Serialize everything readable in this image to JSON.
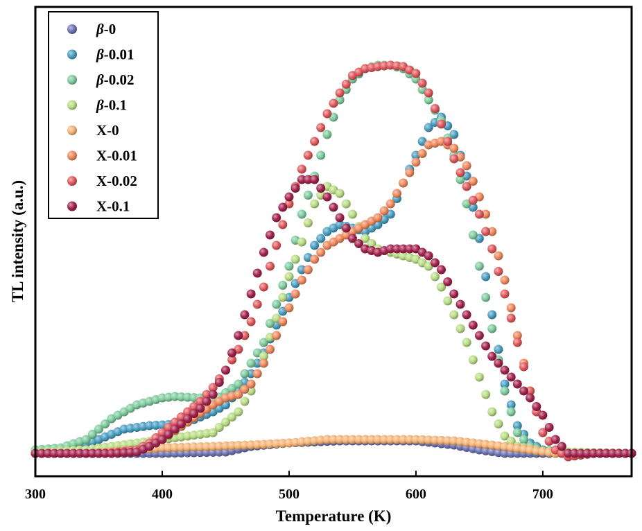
{
  "chart_data": {
    "type": "scatter",
    "xlabel": "Temperature (K)",
    "ylabel": "TL intensity (a.u.)",
    "xlim": [
      300,
      770
    ],
    "ylim": [
      -30,
      650
    ],
    "xticks": [
      "300",
      "400",
      "500",
      "600",
      "700"
    ],
    "grid": false,
    "legend_position": "top-left",
    "series": [
      {
        "name_prefix": "β",
        "name_suffix": "-0",
        "color": "#6f74b3",
        "points": [
          [
            300,
            0
          ],
          [
            340,
            0
          ],
          [
            380,
            0
          ],
          [
            400,
            0
          ],
          [
            450,
            2
          ],
          [
            470,
            10
          ],
          [
            500,
            15
          ],
          [
            540,
            18
          ],
          [
            560,
            18
          ],
          [
            600,
            18
          ],
          [
            630,
            12
          ],
          [
            650,
            5
          ],
          [
            670,
            0
          ],
          [
            700,
            0
          ],
          [
            720,
            0
          ],
          [
            770,
            0
          ]
        ]
      },
      {
        "name_prefix": "β",
        "name_suffix": "-0.01",
        "color": "#4a9ec2",
        "points": [
          [
            300,
            5
          ],
          [
            330,
            8
          ],
          [
            350,
            20
          ],
          [
            370,
            35
          ],
          [
            390,
            40
          ],
          [
            410,
            42
          ],
          [
            420,
            45
          ],
          [
            440,
            60
          ],
          [
            450,
            70
          ],
          [
            460,
            90
          ],
          [
            470,
            115
          ],
          [
            480,
            145
          ],
          [
            490,
            185
          ],
          [
            500,
            225
          ],
          [
            510,
            265
          ],
          [
            520,
            300
          ],
          [
            530,
            320
          ],
          [
            540,
            330
          ],
          [
            550,
            325
          ],
          [
            560,
            320
          ],
          [
            570,
            330
          ],
          [
            580,
            345
          ],
          [
            590,
            390
          ],
          [
            600,
            430
          ],
          [
            610,
            470
          ],
          [
            620,
            485
          ],
          [
            630,
            460
          ],
          [
            640,
            400
          ],
          [
            650,
            310
          ],
          [
            660,
            200
          ],
          [
            670,
            100
          ],
          [
            680,
            40
          ],
          [
            690,
            15
          ],
          [
            700,
            5
          ],
          [
            720,
            0
          ],
          [
            770,
            0
          ]
        ]
      },
      {
        "name_prefix": "β",
        "name_suffix": "-0.02",
        "color": "#7fcc9e",
        "points": [
          [
            300,
            5
          ],
          [
            320,
            8
          ],
          [
            340,
            20
          ],
          [
            360,
            50
          ],
          [
            380,
            70
          ],
          [
            400,
            80
          ],
          [
            410,
            82
          ],
          [
            430,
            80
          ],
          [
            440,
            75
          ],
          [
            460,
            100
          ],
          [
            480,
            160
          ],
          [
            500,
            270
          ],
          [
            510,
            345
          ],
          [
            520,
            400
          ],
          [
            530,
            460
          ],
          [
            540,
            510
          ],
          [
            550,
            540
          ],
          [
            560,
            555
          ],
          [
            570,
            560
          ],
          [
            580,
            560
          ],
          [
            590,
            555
          ],
          [
            600,
            540
          ],
          [
            610,
            510
          ],
          [
            620,
            480
          ],
          [
            630,
            430
          ],
          [
            640,
            360
          ],
          [
            650,
            270
          ],
          [
            660,
            180
          ],
          [
            670,
            90
          ],
          [
            680,
            30
          ],
          [
            690,
            10
          ],
          [
            700,
            3
          ],
          [
            720,
            0
          ],
          [
            770,
            0
          ]
        ]
      },
      {
        "name_prefix": "β",
        "name_suffix": "-0.1",
        "color": "#b9dd86",
        "points": [
          [
            300,
            2
          ],
          [
            340,
            5
          ],
          [
            360,
            10
          ],
          [
            380,
            15
          ],
          [
            400,
            20
          ],
          [
            420,
            25
          ],
          [
            440,
            30
          ],
          [
            460,
            60
          ],
          [
            470,
            90
          ],
          [
            480,
            140
          ],
          [
            490,
            195
          ],
          [
            500,
            255
          ],
          [
            510,
            305
          ],
          [
            520,
            360
          ],
          [
            530,
            385
          ],
          [
            540,
            375
          ],
          [
            550,
            345
          ],
          [
            560,
            310
          ],
          [
            570,
            295
          ],
          [
            580,
            290
          ],
          [
            590,
            285
          ],
          [
            600,
            280
          ],
          [
            610,
            270
          ],
          [
            620,
            240
          ],
          [
            630,
            200
          ],
          [
            640,
            160
          ],
          [
            650,
            110
          ],
          [
            660,
            60
          ],
          [
            670,
            25
          ],
          [
            680,
            10
          ],
          [
            700,
            3
          ],
          [
            770,
            0
          ]
        ]
      },
      {
        "name_prefix": "",
        "name_suffix": "X-0",
        "color": "#f5b476",
        "points": [
          [
            300,
            0
          ],
          [
            340,
            0
          ],
          [
            380,
            5
          ],
          [
            400,
            8
          ],
          [
            440,
            10
          ],
          [
            480,
            13
          ],
          [
            500,
            15
          ],
          [
            530,
            20
          ],
          [
            560,
            20
          ],
          [
            600,
            20
          ],
          [
            630,
            18
          ],
          [
            660,
            12
          ],
          [
            690,
            5
          ],
          [
            710,
            0
          ],
          [
            740,
            0
          ],
          [
            770,
            0
          ]
        ]
      },
      {
        "name_prefix": "",
        "name_suffix": "X-0.01",
        "color": "#f08a5d",
        "points": [
          [
            300,
            0
          ],
          [
            350,
            0
          ],
          [
            380,
            5
          ],
          [
            400,
            20
          ],
          [
            420,
            45
          ],
          [
            440,
            70
          ],
          [
            450,
            80
          ],
          [
            460,
            85
          ],
          [
            470,
            100
          ],
          [
            480,
            130
          ],
          [
            490,
            170
          ],
          [
            500,
            210
          ],
          [
            510,
            250
          ],
          [
            520,
            280
          ],
          [
            530,
            300
          ],
          [
            540,
            310
          ],
          [
            550,
            320
          ],
          [
            560,
            330
          ],
          [
            570,
            340
          ],
          [
            580,
            360
          ],
          [
            590,
            390
          ],
          [
            600,
            420
          ],
          [
            610,
            445
          ],
          [
            620,
            450
          ],
          [
            630,
            440
          ],
          [
            640,
            415
          ],
          [
            650,
            370
          ],
          [
            660,
            320
          ],
          [
            670,
            250
          ],
          [
            680,
            170
          ],
          [
            690,
            90
          ],
          [
            700,
            30
          ],
          [
            710,
            5
          ],
          [
            720,
            0
          ],
          [
            770,
            0
          ]
        ]
      },
      {
        "name_prefix": "",
        "name_suffix": "X-0.02",
        "color": "#e05a5e",
        "points": [
          [
            300,
            0
          ],
          [
            360,
            0
          ],
          [
            380,
            5
          ],
          [
            390,
            15
          ],
          [
            400,
            30
          ],
          [
            410,
            45
          ],
          [
            420,
            60
          ],
          [
            430,
            75
          ],
          [
            440,
            95
          ],
          [
            450,
            120
          ],
          [
            460,
            150
          ],
          [
            470,
            190
          ],
          [
            480,
            240
          ],
          [
            490,
            300
          ],
          [
            500,
            360
          ],
          [
            510,
            410
          ],
          [
            520,
            450
          ],
          [
            530,
            490
          ],
          [
            540,
            520
          ],
          [
            550,
            545
          ],
          [
            560,
            555
          ],
          [
            570,
            558
          ],
          [
            580,
            560
          ],
          [
            590,
            558
          ],
          [
            600,
            548
          ],
          [
            610,
            520
          ],
          [
            620,
            475
          ],
          [
            630,
            425
          ],
          [
            640,
            385
          ],
          [
            650,
            345
          ],
          [
            660,
            295
          ],
          [
            670,
            230
          ],
          [
            680,
            160
          ],
          [
            690,
            90
          ],
          [
            700,
            30
          ],
          [
            710,
            5
          ],
          [
            720,
            -5
          ],
          [
            740,
            0
          ],
          [
            770,
            0
          ]
        ]
      },
      {
        "name_prefix": "",
        "name_suffix": "X-0.1",
        "color": "#a3234e",
        "points": [
          [
            300,
            0
          ],
          [
            360,
            0
          ],
          [
            380,
            2
          ],
          [
            390,
            10
          ],
          [
            400,
            20
          ],
          [
            410,
            35
          ],
          [
            420,
            50
          ],
          [
            430,
            65
          ],
          [
            440,
            85
          ],
          [
            450,
            120
          ],
          [
            460,
            170
          ],
          [
            470,
            230
          ],
          [
            480,
            290
          ],
          [
            490,
            340
          ],
          [
            500,
            370
          ],
          [
            510,
            395
          ],
          [
            520,
            395
          ],
          [
            530,
            370
          ],
          [
            540,
            340
          ],
          [
            550,
            310
          ],
          [
            560,
            295
          ],
          [
            570,
            290
          ],
          [
            580,
            295
          ],
          [
            590,
            295
          ],
          [
            600,
            295
          ],
          [
            610,
            285
          ],
          [
            620,
            265
          ],
          [
            630,
            230
          ],
          [
            640,
            200
          ],
          [
            650,
            170
          ],
          [
            660,
            140
          ],
          [
            670,
            120
          ],
          [
            680,
            100
          ],
          [
            690,
            80
          ],
          [
            700,
            55
          ],
          [
            710,
            20
          ],
          [
            720,
            0
          ],
          [
            740,
            0
          ],
          [
            770,
            0
          ]
        ]
      }
    ]
  }
}
